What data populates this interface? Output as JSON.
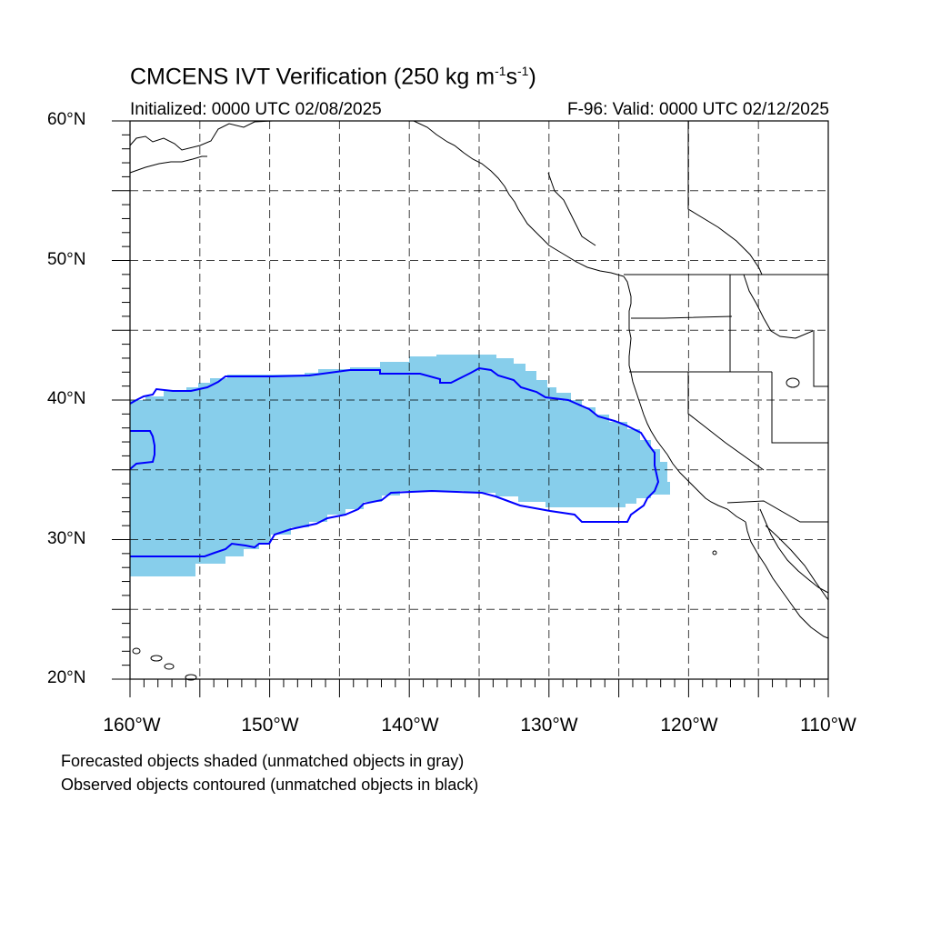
{
  "header": {
    "title_main": "CMCENS IVT Verification (250 kg m",
    "title_sup1": "-1",
    "title_mid": "s",
    "title_sup2": "-1",
    "title_end": ")",
    "initialized": "Initialized: 0000 UTC 02/08/2025",
    "valid": "F-96: Valid: 0000 UTC 02/12/2025"
  },
  "map": {
    "lon_range": [
      -160,
      -110
    ],
    "lat_range": [
      20,
      60
    ],
    "lat_labels": [
      "60°N",
      "50°N",
      "40°N",
      "30°N",
      "20°N"
    ],
    "lon_labels": [
      "160°W",
      "150°W",
      "140°W",
      "130°W",
      "120°W",
      "110°W"
    ],
    "colors": {
      "forecast_fill": "#87ceeb",
      "observed_contour": "#0000ff",
      "coastline": "#000000",
      "grid": "#000000"
    }
  },
  "legend": {
    "line1": "Forecasted objects shaded (unmatched objects in gray)",
    "line2": "Observed objects contoured (unmatched objects in black)"
  }
}
